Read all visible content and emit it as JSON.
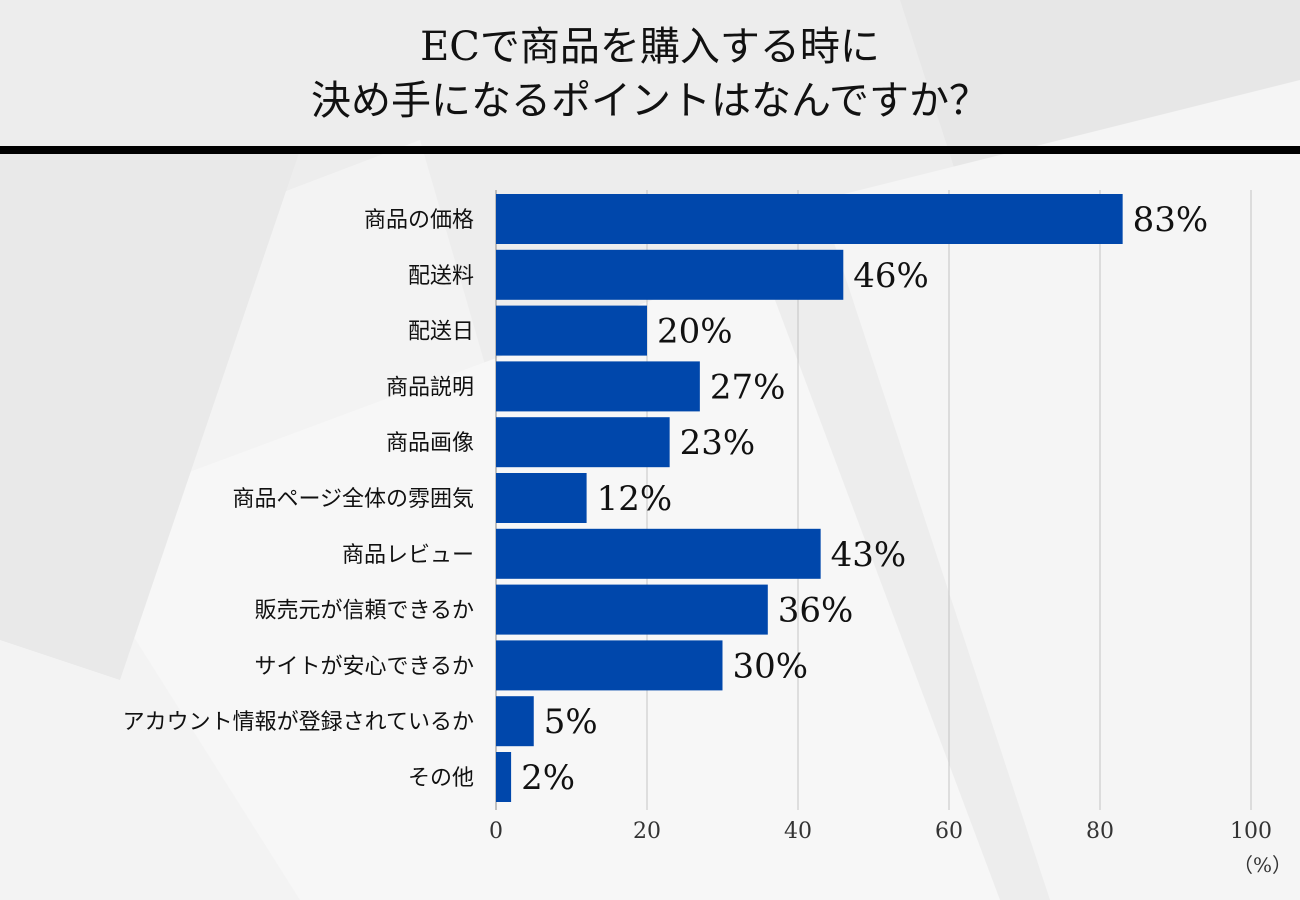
{
  "title": {
    "line1": "ECで商品を購入する時に",
    "line2": "決め手になるポイントはなんですか？"
  },
  "chart_data": {
    "type": "bar",
    "orientation": "horizontal",
    "categories": [
      "商品の価格",
      "配送料",
      "配送日",
      "商品説明",
      "商品画像",
      "商品ページ全体の雰囲気",
      "商品レビュー",
      "販売元が信頼できるか",
      "サイトが安心できるか",
      "アカウント情報が登録されているか",
      "その他"
    ],
    "values": [
      83,
      46,
      20,
      27,
      23,
      12,
      43,
      36,
      30,
      5,
      2
    ],
    "value_labels": [
      "83%",
      "46%",
      "20%",
      "27%",
      "23%",
      "12%",
      "43%",
      "36%",
      "30%",
      "5%",
      "2%"
    ],
    "xlim": [
      0,
      100
    ],
    "xticks": [
      0,
      20,
      40,
      60,
      80,
      100
    ],
    "xunit": "（%）",
    "grid": true,
    "bar_color": "#0047AB"
  }
}
